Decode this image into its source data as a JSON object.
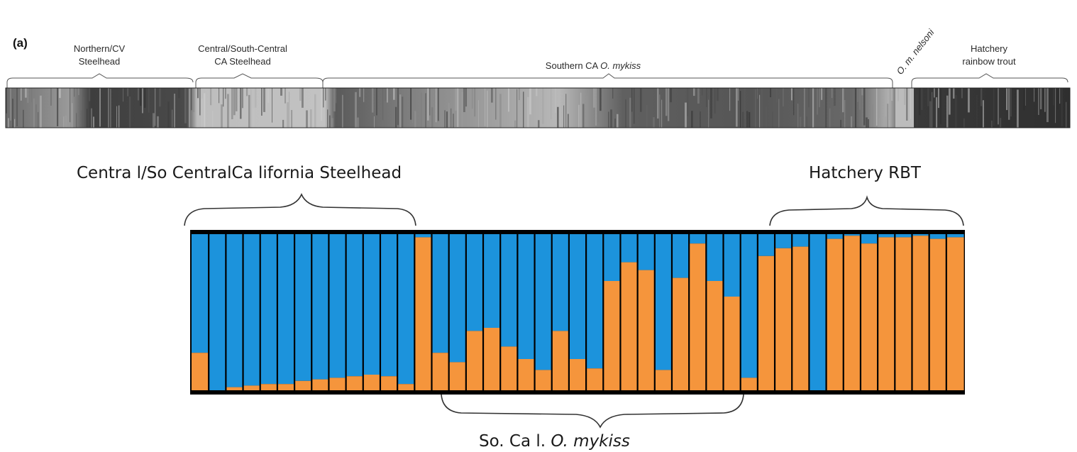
{
  "chart_data": [
    {
      "type": "bar",
      "stacked": true,
      "panel_label": "(a)",
      "color_scheme": "grayscale",
      "groups": [
        {
          "label_lines": [
            "Northern/CV",
            "Steelhead"
          ]
        },
        {
          "label_lines": [
            "Central/South-Central",
            "CA Steelhead"
          ]
        },
        {
          "label_parts": [
            {
              "text": "Southern CA ",
              "italic": false
            },
            {
              "text": "O. mykiss",
              "italic": true
            }
          ]
        },
        {
          "label": "O. m. nelsoni",
          "rotated": true
        },
        {
          "label_lines": [
            "Hatchery",
            "rainbow trout"
          ]
        }
      ]
    },
    {
      "type": "bar",
      "stacked": true,
      "ylim": [
        0,
        1
      ],
      "colors": {
        "blue": "#1c93dc",
        "orange": "#f5953c",
        "divider": "#000000"
      },
      "groups": [
        {
          "label": "Centra l/So CentralCa lifornia Steelhead",
          "position": "above"
        },
        {
          "label_parts": [
            {
              "text": "So. Ca l. ",
              "italic": false
            },
            {
              "text": "O. mykiss",
              "italic": true
            }
          ],
          "position": "below"
        },
        {
          "label": "Hatchery RBT",
          "position": "above"
        }
      ],
      "orange_fraction": [
        0.24,
        0.0,
        0.02,
        0.03,
        0.04,
        0.04,
        0.06,
        0.07,
        0.08,
        0.09,
        0.1,
        0.09,
        0.04,
        0.98,
        0.24,
        0.18,
        0.38,
        0.4,
        0.28,
        0.2,
        0.13,
        0.38,
        0.2,
        0.14,
        0.7,
        0.82,
        0.77,
        0.13,
        0.72,
        0.94,
        0.7,
        0.6,
        0.08,
        0.86,
        0.91,
        0.92,
        0.0,
        0.97,
        0.99,
        0.94,
        0.98,
        0.98,
        0.99,
        0.97,
        0.98
      ]
    }
  ]
}
